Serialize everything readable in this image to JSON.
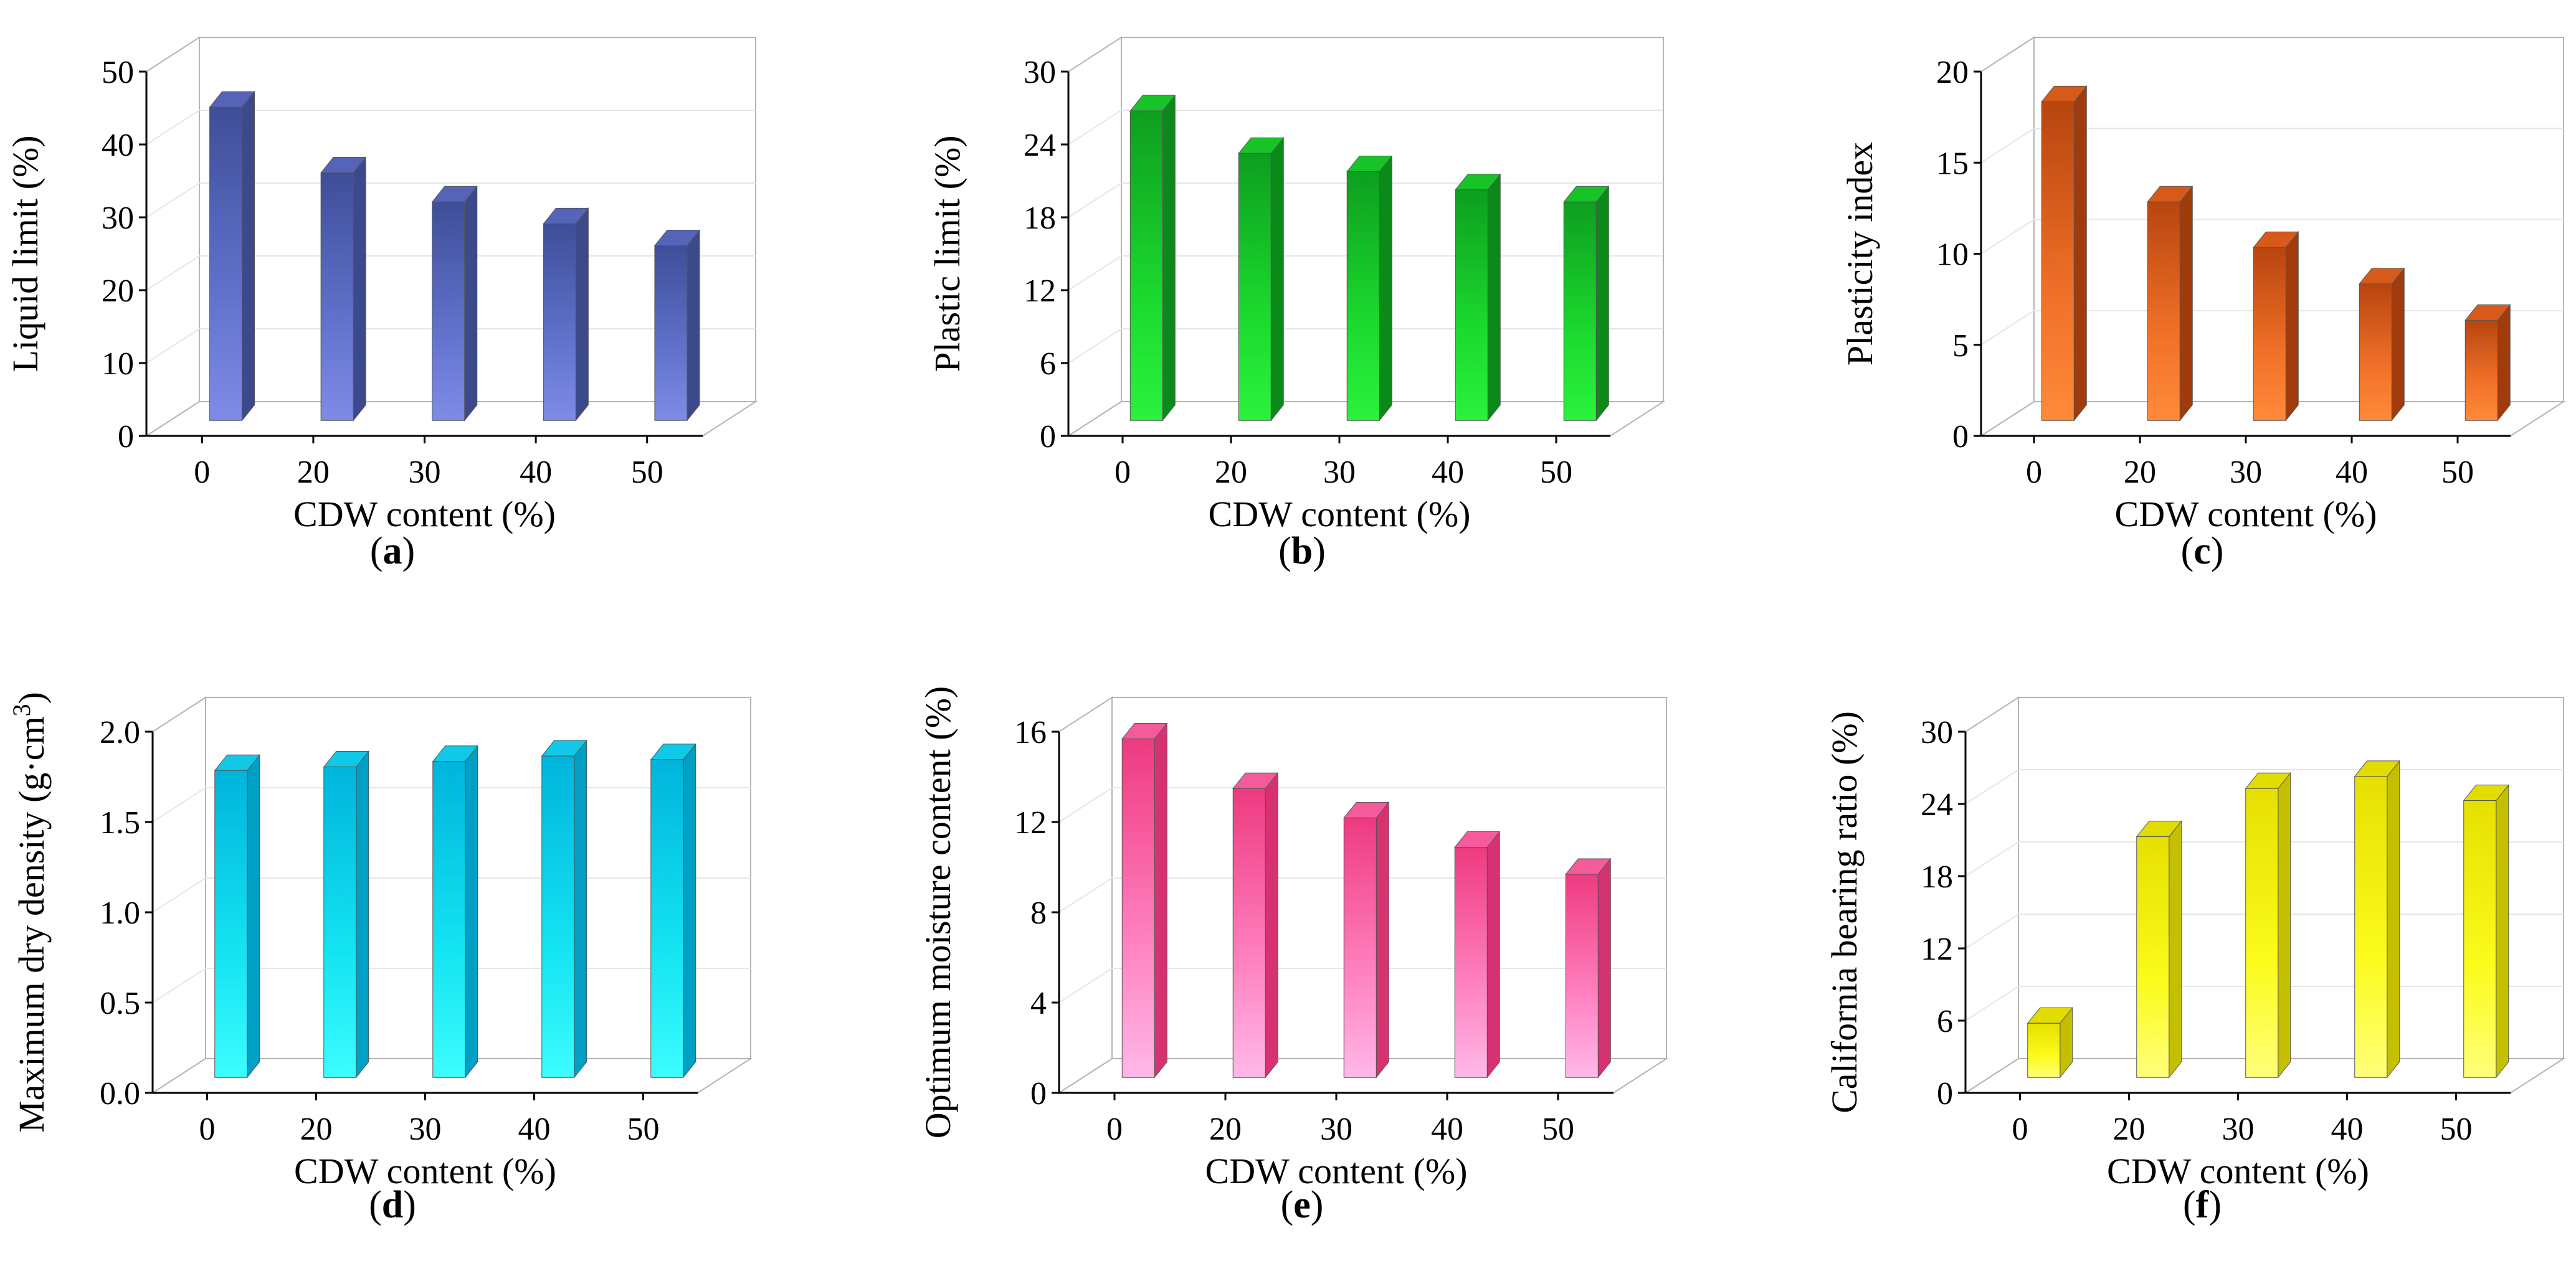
{
  "figure": {
    "panel_labels": [
      "(a)",
      "(b)",
      "(c)",
      "(d)",
      "(e)",
      "(f)"
    ]
  },
  "chart_data": [
    {
      "id": "a",
      "type": "bar",
      "panel_label": "(a)",
      "xlabel": "CDW content (%)",
      "ylabel": "Liquid limit (%)",
      "categories": [
        "0",
        "20",
        "30",
        "40",
        "50"
      ],
      "values": [
        43,
        34,
        30,
        27,
        24
      ],
      "ylim": [
        0,
        50
      ],
      "yticks": [
        "0",
        "10",
        "20",
        "30",
        "40",
        "50"
      ],
      "grid": true,
      "colors": {
        "dark": "#3e4e99",
        "mid": "#6272cc",
        "light": "#7e8ce6",
        "side": "#3c4a8c",
        "top": "#5564b8"
      }
    },
    {
      "id": "b",
      "type": "bar",
      "panel_label": "(b)",
      "xlabel": "CDW content (%)",
      "ylabel": "Plastic limit (%)",
      "categories": [
        "0",
        "20",
        "30",
        "40",
        "50"
      ],
      "values": [
        25.5,
        22,
        20.5,
        19,
        18
      ],
      "ylim": [
        0,
        30
      ],
      "yticks": [
        "0",
        "6",
        "12",
        "18",
        "24",
        "30"
      ],
      "grid": true,
      "colors": {
        "dark": "#0e9e1f",
        "mid": "#1bd92e",
        "light": "#2bf23d",
        "side": "#0b8a1a",
        "top": "#17c428"
      }
    },
    {
      "id": "c",
      "type": "bar",
      "panel_label": "(c)",
      "xlabel": "CDW content (%)",
      "ylabel": "Plasticity index",
      "categories": [
        "0",
        "20",
        "30",
        "40",
        "50"
      ],
      "values": [
        17.5,
        12,
        9.5,
        7.5,
        5.5
      ],
      "ylim": [
        0,
        20
      ],
      "yticks": [
        "0",
        "5",
        "10",
        "15",
        "20"
      ],
      "grid": true,
      "colors": {
        "dark": "#b8450f",
        "mid": "#f07028",
        "light": "#ff8a3a",
        "side": "#a03c0c",
        "top": "#d85a1a"
      }
    },
    {
      "id": "d",
      "type": "bar",
      "panel_label": "(d)",
      "xlabel": "CDW content (%)",
      "ylabel": "Maximum dry density (g·cm",
      "ylabel_sup": "3",
      "ylabel_end": ")",
      "categories": [
        "0",
        "20",
        "30",
        "40",
        "50"
      ],
      "values": [
        1.7,
        1.72,
        1.75,
        1.78,
        1.76
      ],
      "ylim": [
        0,
        2.0
      ],
      "yticks": [
        "0.0",
        "0.5",
        "1.0",
        "1.5",
        "2.0"
      ],
      "grid": true,
      "colors": {
        "dark": "#00b4dc",
        "mid": "#14e4f2",
        "light": "#3cfcff",
        "side": "#009fc4",
        "top": "#10c8e8"
      }
    },
    {
      "id": "e",
      "type": "bar",
      "panel_label": "(e)",
      "xlabel": "CDW content (%)",
      "ylabel": "Optimum moisture content (%)",
      "categories": [
        "0",
        "20",
        "30",
        "40",
        "50"
      ],
      "values": [
        15,
        12.8,
        11.5,
        10.2,
        9
      ],
      "ylim": [
        0,
        16
      ],
      "yticks": [
        "0",
        "4",
        "8",
        "12",
        "16"
      ],
      "grid": true,
      "colors": {
        "dark": "#ee3a80",
        "mid": "#ff82c0",
        "light": "#ffb8e8",
        "side": "#d63272",
        "top": "#f55a9a"
      }
    },
    {
      "id": "f",
      "type": "bar",
      "panel_label": "(f)",
      "xlabel": "CDW content (%)",
      "ylabel": "California bearing ratio (%)",
      "categories": [
        "0",
        "20",
        "30",
        "40",
        "50"
      ],
      "values": [
        4.5,
        20,
        24,
        25,
        23
      ],
      "ylim": [
        0,
        30
      ],
      "yticks": [
        "0",
        "6",
        "12",
        "18",
        "24",
        "30"
      ],
      "grid": true,
      "colors": {
        "dark": "#e6e000",
        "mid": "#fbfb1c",
        "light": "#ffff7a",
        "side": "#c4bf00",
        "top": "#e2dc00"
      }
    }
  ]
}
